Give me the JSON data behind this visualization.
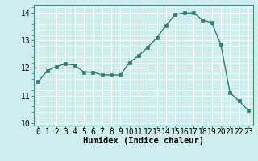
{
  "x": [
    0,
    1,
    2,
    3,
    4,
    5,
    6,
    7,
    8,
    9,
    10,
    11,
    12,
    13,
    14,
    15,
    16,
    17,
    18,
    19,
    20,
    21,
    22,
    23
  ],
  "y": [
    11.5,
    11.9,
    12.05,
    12.15,
    12.1,
    11.85,
    11.85,
    11.75,
    11.75,
    11.75,
    12.2,
    12.45,
    12.75,
    13.1,
    13.55,
    13.95,
    14.0,
    14.0,
    13.75,
    13.65,
    12.85,
    11.1,
    10.8,
    10.45
  ],
  "line_color": "#2e7d70",
  "marker": "s",
  "marker_size": 2.2,
  "bg_color": "#ceeeed",
  "grid_color": "#ffffff",
  "xlabel": "Humidex (Indice chaleur)",
  "xlabel_fontsize": 7.5,
  "tick_fontsize": 7,
  "ylim": [
    9.9,
    14.3
  ],
  "yticks": [
    10,
    11,
    12,
    13,
    14
  ],
  "line_width": 1.0
}
